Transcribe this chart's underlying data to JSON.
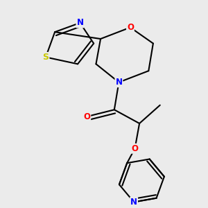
{
  "background_color": "#ebebeb",
  "bond_color": "#000000",
  "bond_width": 1.5,
  "atom_colors": {
    "N": "#0000ff",
    "O": "#ff0000",
    "S": "#c8c800",
    "C": "#000000"
  },
  "font_size": 8.5
}
